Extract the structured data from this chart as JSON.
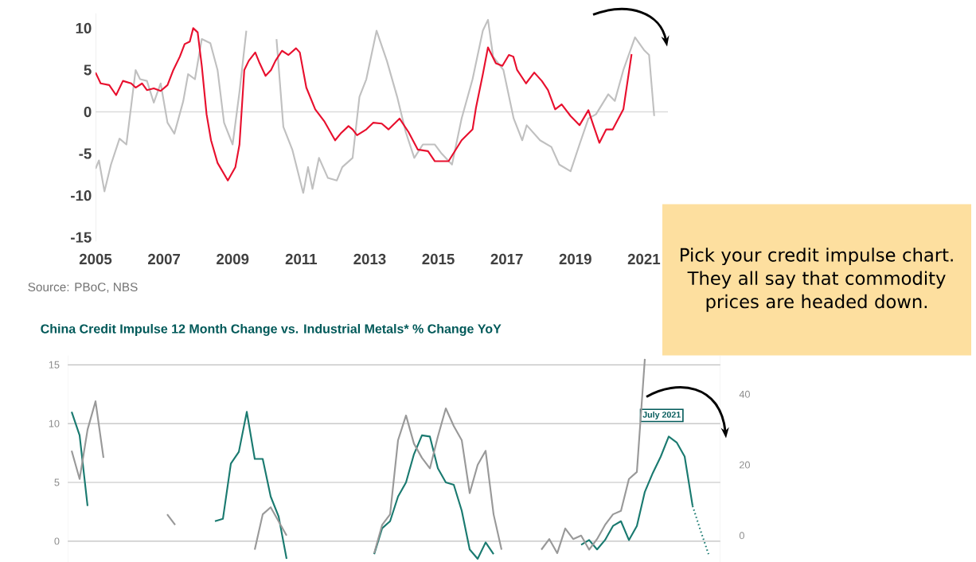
{
  "chart_data": [
    {
      "type": "line",
      "xlim": [
        2005,
        2021.7
      ],
      "ylim": [
        -15.5,
        11.8
      ],
      "xticks": [
        2005,
        2007,
        2009,
        2011,
        2013,
        2015,
        2017,
        2019,
        2021
      ],
      "yticks": [
        -15,
        -10,
        -5,
        0,
        5,
        10
      ],
      "ref_lines": [
        {
          "axis": "y",
          "value": 0,
          "color": "#d9d9d9"
        }
      ],
      "annotations": [
        "Source: PBoC, NBS"
      ],
      "series": [
        {
          "color": "#c0c0c0",
          "x": [
            2005,
            2005.1,
            2005.26,
            2005.45,
            2005.7,
            2005.9,
            2006.17,
            2006.3,
            2006.5,
            2006.7,
            2006.9,
            2007.1,
            2007.3,
            2007.56,
            2007.7,
            2007.9,
            2008.1,
            2008.35,
            2008.56,
            2008.75,
            2009.0,
            2009.2,
            2009.4,
            2009.59,
            2010.15,
            2010.28,
            2010.48,
            2010.74,
            2011.06,
            2011.2,
            2011.33,
            2011.52,
            2011.78,
            2012.04,
            2012.2,
            2012.5,
            2012.7,
            2012.9,
            2013.2,
            2013.5,
            2013.8,
            2014.05,
            2014.3,
            2014.55,
            2014.9,
            2015.1,
            2015.4,
            2015.68,
            2016.0,
            2016.3,
            2016.45,
            2016.6,
            2016.9,
            2017.2,
            2017.45,
            2017.58,
            2017.97,
            2018.3,
            2018.53,
            2018.86,
            2019.12,
            2019.38,
            2019.6,
            2019.96,
            2020.15,
            2020.4,
            2020.74,
            2021.0,
            2021.15,
            2021.3
          ],
          "values": [
            -6.8,
            -5.8,
            -9.5,
            -6.3,
            -3.2,
            -3.9,
            5.0,
            3.9,
            3.7,
            1.1,
            3.4,
            -1.3,
            -2.6,
            1.3,
            4.5,
            3.9,
            8.7,
            8.2,
            5.0,
            -1.3,
            -3.9,
            2.4,
            9.7,
            null,
            null,
            8.7,
            -1.8,
            -4.5,
            -9.7,
            -6.6,
            -9.2,
            -5.5,
            -7.9,
            -8.2,
            -6.6,
            -5.5,
            1.8,
            3.9,
            9.7,
            6.1,
            1.8,
            -2.4,
            -5.5,
            -3.9,
            -3.9,
            -5.0,
            -6.3,
            -0.8,
            3.9,
            9.7,
            11.0,
            6.6,
            5.0,
            -0.8,
            -3.4,
            -1.6,
            -3.4,
            -4.2,
            -6.3,
            -7.1,
            -3.9,
            -0.8,
            -0.3,
            2.1,
            1.3,
            5.0,
            8.9,
            7.4,
            6.8,
            -0.5
          ]
        },
        {
          "color": "#e8102e",
          "x": [
            2005.0,
            2005.15,
            2005.4,
            2005.6,
            2005.8,
            2006.04,
            2006.17,
            2006.36,
            2006.5,
            2006.7,
            2006.9,
            2007.1,
            2007.27,
            2007.46,
            2007.6,
            2007.75,
            2007.85,
            2007.98,
            2008.1,
            2008.24,
            2008.37,
            2008.56,
            2008.86,
            2009.08,
            2009.2,
            2009.34,
            2009.47,
            2009.66,
            2009.79,
            2009.96,
            2010.12,
            2010.25,
            2010.44,
            2010.63,
            2010.85,
            2010.96,
            2011.15,
            2011.41,
            2011.67,
            2011.99,
            2012.15,
            2012.38,
            2012.5,
            2012.63,
            2012.9,
            2013.1,
            2013.35,
            2013.55,
            2013.87,
            2014.13,
            2014.4,
            2014.7,
            2014.9,
            2015.3,
            2015.68,
            2016.0,
            2016.1,
            2016.3,
            2016.45,
            2016.68,
            2016.87,
            2017.06,
            2017.19,
            2017.3,
            2017.56,
            2017.8,
            2018.02,
            2018.2,
            2018.41,
            2018.6,
            2018.86,
            2019.12,
            2019.38,
            2019.5,
            2019.7,
            2019.9,
            2020.09,
            2020.4,
            2020.64
          ],
          "values": [
            4.7,
            3.4,
            3.2,
            2.0,
            3.7,
            3.4,
            2.9,
            3.4,
            2.6,
            2.8,
            2.5,
            3.2,
            5.0,
            6.6,
            8.1,
            8.4,
            10.0,
            9.5,
            5.5,
            -0.3,
            -3.4,
            -6.1,
            -8.2,
            -6.6,
            -3.9,
            5.0,
            6.1,
            7.1,
            5.8,
            4.3,
            5.0,
            6.1,
            7.3,
            6.8,
            7.6,
            7.1,
            2.9,
            0.3,
            -1.1,
            -3.4,
            -2.6,
            -1.7,
            -2.1,
            -2.8,
            -2.1,
            -1.3,
            -1.4,
            -2.1,
            -0.8,
            -2.4,
            -4.5,
            -4.7,
            -5.9,
            -5.9,
            -3.4,
            -2.1,
            0.5,
            4.5,
            7.7,
            5.8,
            5.5,
            6.8,
            6.6,
            5.0,
            3.4,
            4.7,
            3.7,
            2.6,
            0.3,
            0.9,
            -0.5,
            -1.6,
            0.2,
            -1.3,
            -3.7,
            -2.1,
            -2.1,
            0.3,
            6.9
          ]
        }
      ]
    },
    {
      "type": "line",
      "title": "China Credit Impulse 12 Month Change vs. Industrial Metals* % Change YoY",
      "categories": [
        null,
        null,
        null,
        null,
        null,
        null,
        null,
        null,
        null,
        null,
        null,
        null,
        null,
        null,
        null,
        null,
        null,
        null,
        null,
        null,
        null,
        null,
        null,
        null,
        null,
        null,
        null,
        null,
        null,
        null,
        null,
        null,
        null,
        null,
        null,
        null,
        null,
        null,
        null,
        null,
        null,
        null,
        null,
        null,
        null,
        null,
        null,
        null,
        null,
        null,
        null,
        null,
        null,
        null,
        null,
        null,
        null,
        null,
        null,
        null,
        null,
        null,
        null,
        null,
        null,
        null,
        null,
        null,
        null,
        null,
        null,
        null,
        null,
        null,
        null,
        null,
        null,
        null,
        null,
        null,
        null,
        null
      ],
      "ylim": [
        -1.8,
        15.8
      ],
      "yticks": [
        0,
        5,
        10,
        15
      ],
      "y2lim": [
        -7.6,
        51
      ],
      "y2ticks": [
        0,
        20,
        40
      ],
      "grid": "y",
      "annotations": [
        "July 2021"
      ],
      "series": [
        {
          "color": "#999999",
          "axis": "y2",
          "values": [
            24,
            16,
            30,
            38,
            22,
            null,
            null,
            null,
            null,
            null,
            null,
            null,
            6,
            3,
            null,
            null,
            null,
            null,
            null,
            null,
            null,
            null,
            null,
            -4,
            6,
            8,
            4,
            0,
            null,
            null,
            null,
            null,
            null,
            null,
            null,
            null,
            null,
            null,
            -5,
            3,
            6,
            27,
            34,
            26,
            22,
            19,
            28,
            36,
            31,
            27,
            12,
            20,
            24,
            6,
            -4,
            null,
            null,
            null,
            null,
            -4,
            -1,
            -5,
            2,
            -1,
            0,
            -4,
            -1,
            3,
            6,
            7,
            16,
            18,
            50,
            null,
            null,
            null,
            null,
            null,
            null,
            null,
            null,
            null
          ]
        },
        {
          "color": "#1a7a70",
          "line_style": "solid",
          "values": [
            11.0,
            9.0,
            3.0,
            null,
            null,
            null,
            null,
            null,
            null,
            null,
            null,
            null,
            null,
            null,
            null,
            null,
            null,
            null,
            1.7,
            1.9,
            6.6,
            7.6,
            11.0,
            7.0,
            7.0,
            3.8,
            2.1,
            -1.5,
            null,
            null,
            null,
            null,
            null,
            null,
            null,
            null,
            null,
            null,
            -1.1,
            1.1,
            1.7,
            3.8,
            5.0,
            7.4,
            9.0,
            8.9,
            6.2,
            5.0,
            4.8,
            2.6,
            -0.7,
            -1.5,
            -0.1,
            -1.1,
            null,
            null,
            null,
            null,
            null,
            null,
            null,
            null,
            null,
            null,
            -0.3,
            0.1,
            -0.7,
            0.1,
            1.3,
            1.7,
            0.1,
            1.3,
            4.2,
            5.8,
            7.2,
            8.9,
            8.4,
            7.2,
            3.0,
            null,
            null,
            null
          ]
        },
        {
          "color": "#1a7a70",
          "line_style": "dotted",
          "values": [
            null,
            null,
            null,
            null,
            null,
            null,
            null,
            null,
            null,
            null,
            null,
            null,
            null,
            null,
            null,
            null,
            null,
            null,
            null,
            null,
            null,
            null,
            null,
            null,
            null,
            null,
            null,
            null,
            null,
            null,
            null,
            null,
            null,
            null,
            null,
            null,
            null,
            null,
            null,
            null,
            null,
            null,
            null,
            null,
            null,
            null,
            null,
            null,
            null,
            null,
            null,
            null,
            null,
            null,
            null,
            null,
            null,
            null,
            null,
            null,
            null,
            null,
            null,
            null,
            null,
            null,
            null,
            null,
            null,
            null,
            null,
            null,
            null,
            null,
            null,
            null,
            null,
            null,
            3.0,
            0.9,
            -1.1,
            null
          ]
        }
      ]
    },
    {
      "type": "other",
      "annotations": [
        "Pick your credit impulse chart. They all say that commodity prices are headed down."
      ]
    }
  ]
}
